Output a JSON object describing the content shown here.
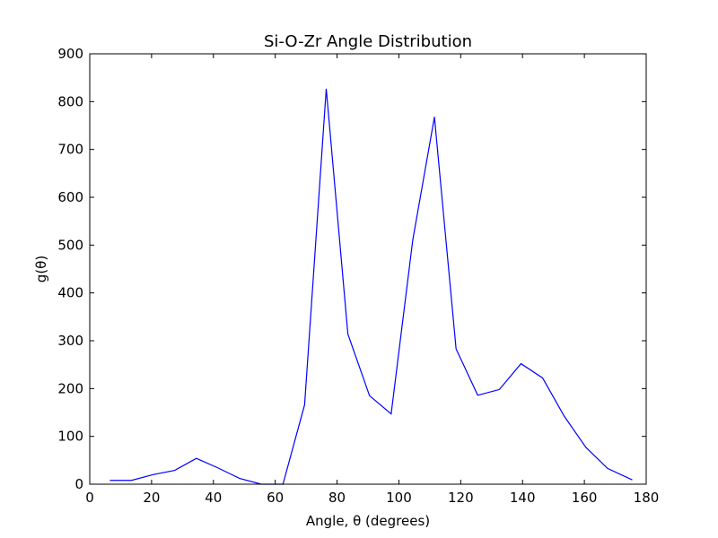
{
  "chart_data": {
    "type": "line",
    "title": "Si-O-Zr Angle Distribution",
    "xlabel": "Angle, θ (degrees)",
    "ylabel": "g(θ)",
    "xlim": [
      0,
      180
    ],
    "ylim": [
      0,
      900
    ],
    "xticks": [
      0,
      20,
      40,
      60,
      80,
      100,
      120,
      140,
      160,
      180
    ],
    "yticks": [
      0,
      100,
      200,
      300,
      400,
      500,
      600,
      700,
      800,
      900
    ],
    "grid": false,
    "series": [
      {
        "color": "#0000ff",
        "x": [
          6.5,
          13.5,
          20.5,
          27.5,
          34.5,
          41.5,
          48.5,
          55.5,
          62.5,
          69.5,
          76.5,
          83.5,
          90.5,
          97.5,
          104.5,
          111.5,
          118.5,
          125.5,
          132.5,
          139.5,
          146.5,
          153.5,
          160.5,
          167.5,
          175.5
        ],
        "y": [
          8,
          8,
          20,
          29,
          54,
          34,
          12,
          0,
          0,
          166,
          827,
          314,
          185,
          147,
          511,
          768,
          283,
          186,
          198,
          252,
          222,
          142,
          77,
          33,
          9
        ]
      }
    ]
  }
}
